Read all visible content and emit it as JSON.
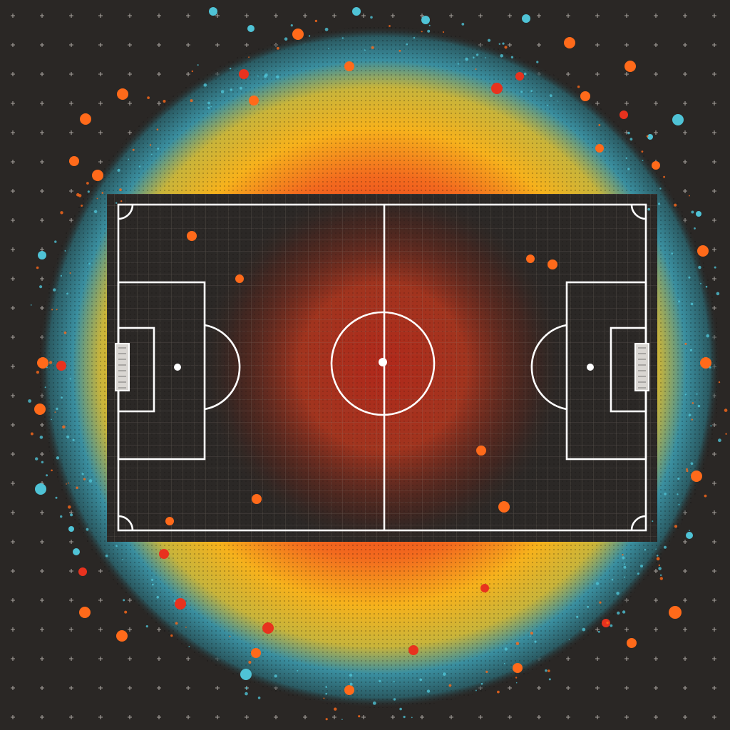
{
  "artwork": {
    "subject": "football-pitch-heatmap",
    "colors": {
      "background": "#2a2725",
      "grid_dots": "#cfcac4",
      "pitch_fill": "#2b2826",
      "pitch_lines": "#ffffff",
      "heat_core": "#c0281c",
      "heat_mid": "#f05a1e",
      "heat_warm": "#f6b21c",
      "heat_outer": "#3a8fa0",
      "dot_orange": "#ff6a1a",
      "dot_red": "#e8321e",
      "dot_cyan": "#4fc3d6"
    }
  }
}
